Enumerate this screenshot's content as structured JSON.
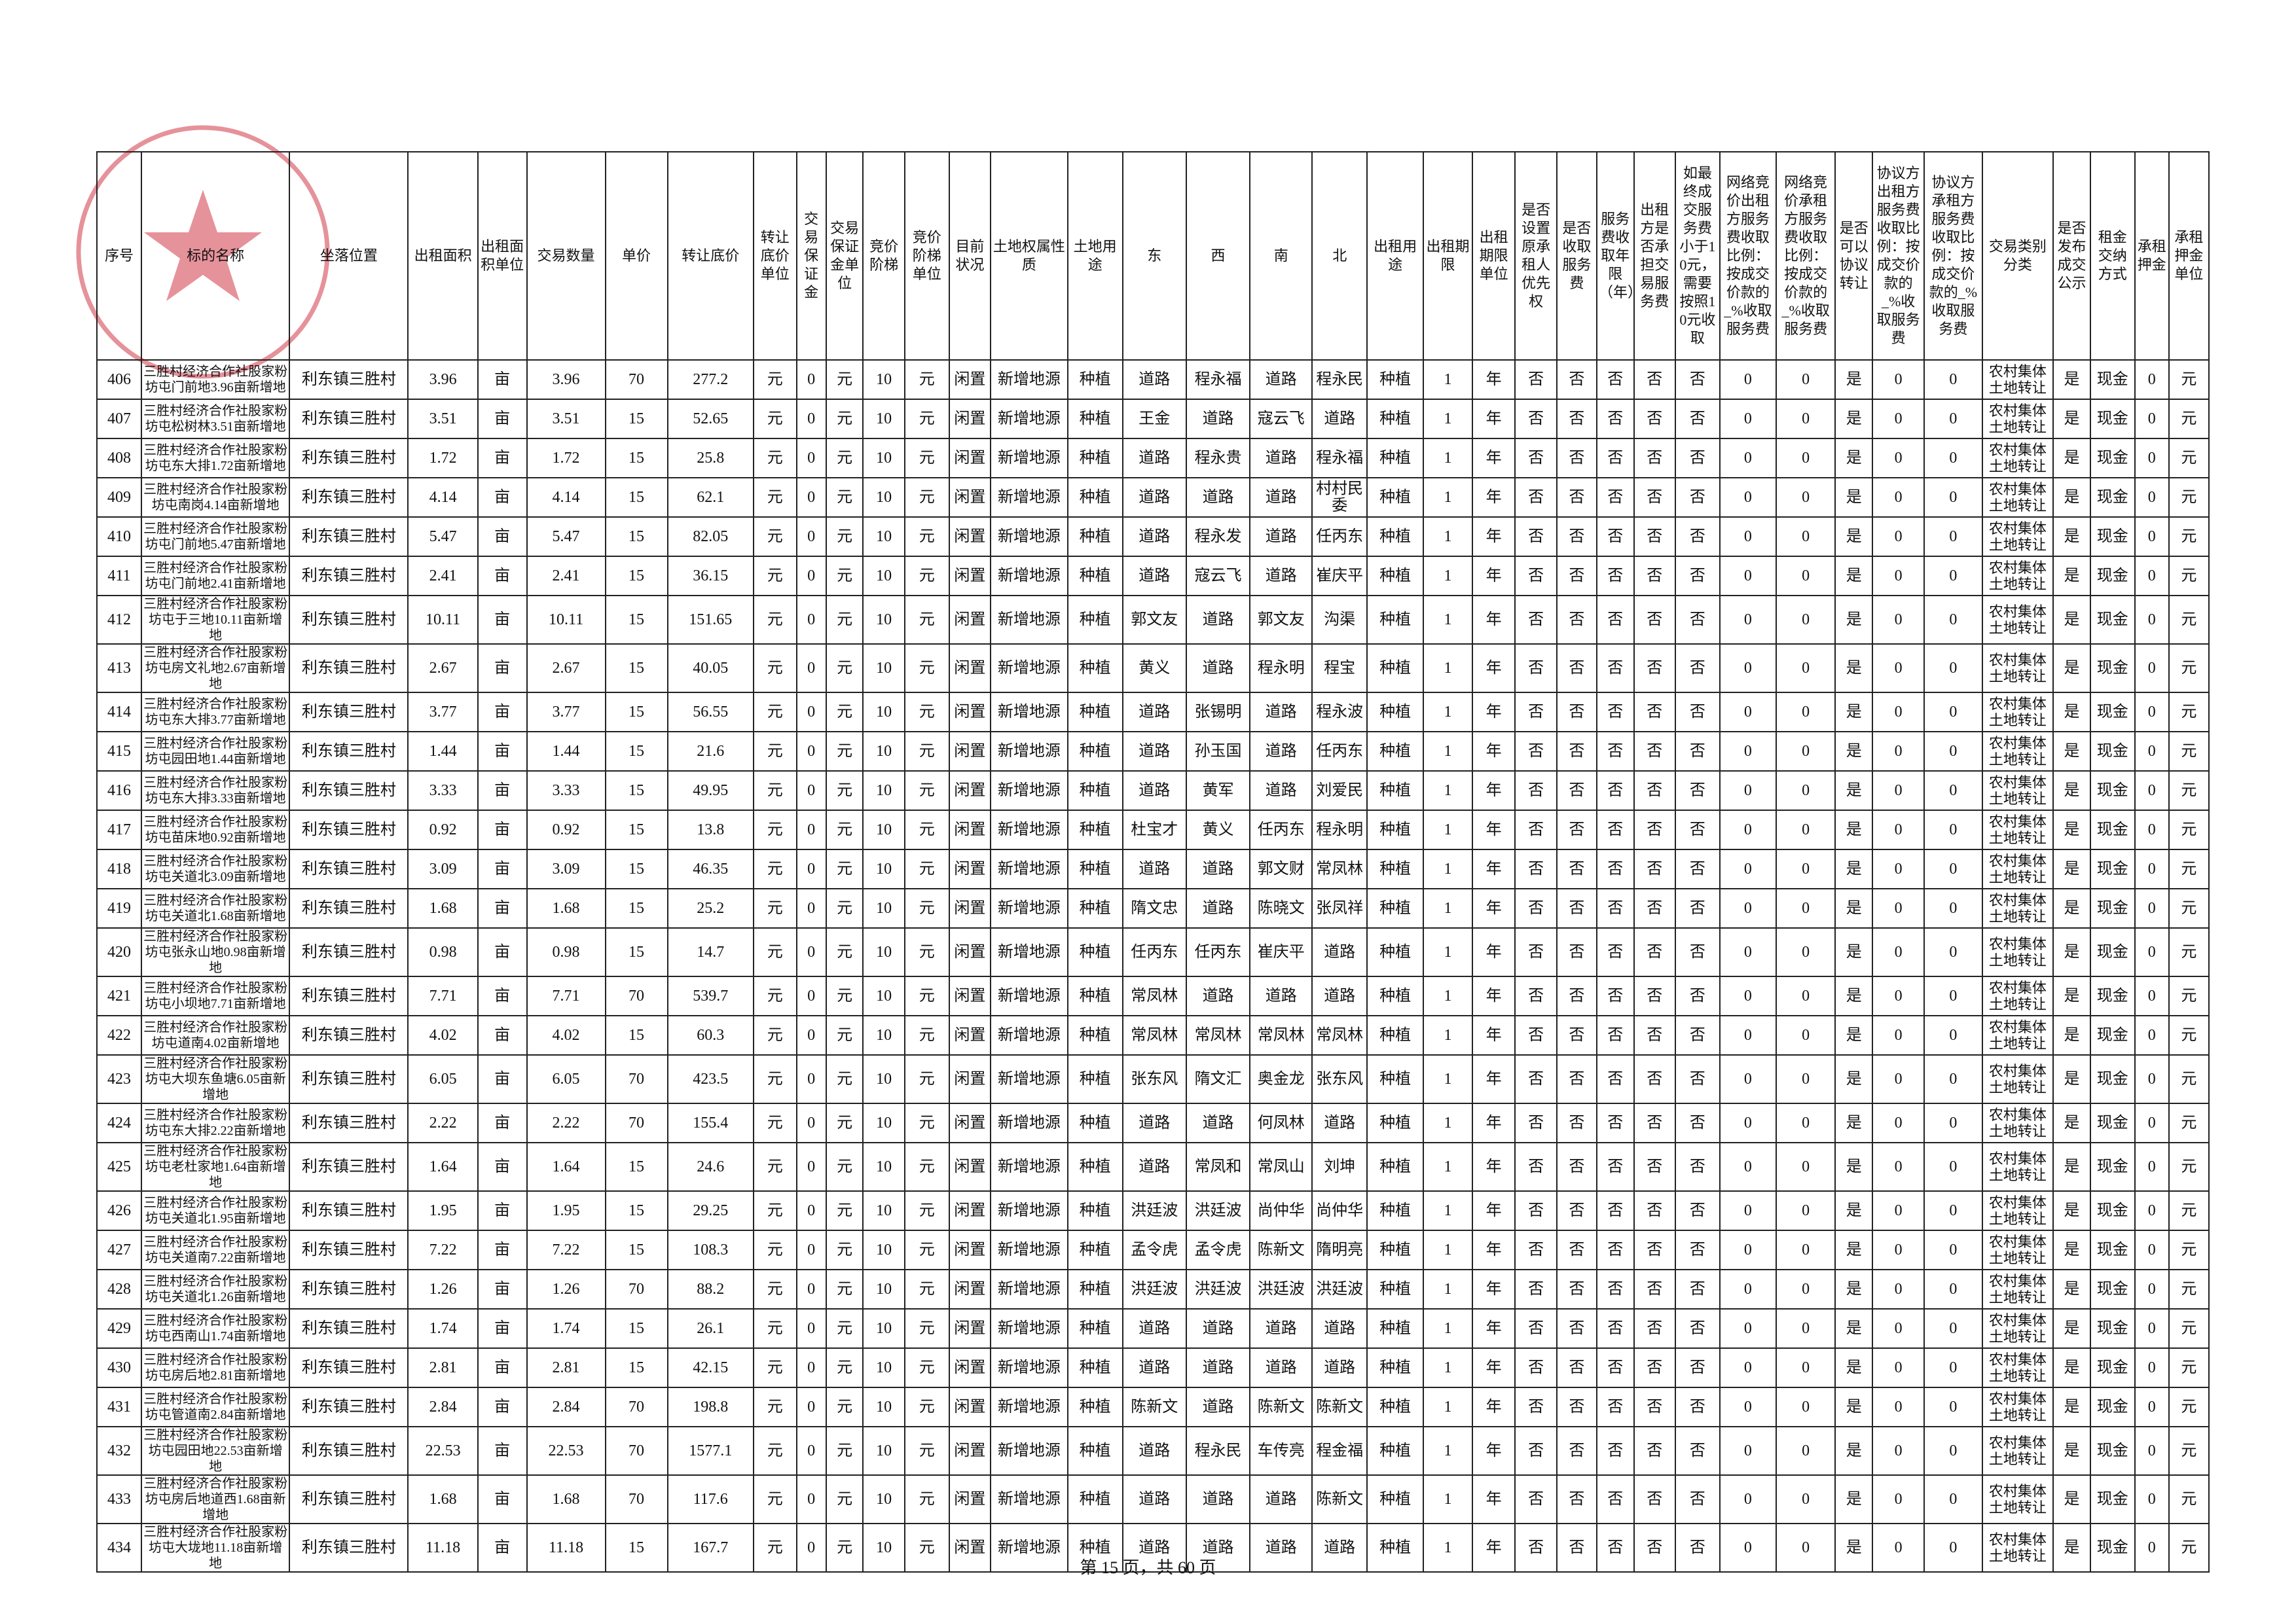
{
  "table": {
    "headers": [
      "序号",
      "标的名称",
      "坐落位置",
      "出租面积",
      "出租面积单位",
      "交易数量",
      "单价",
      "转让底价",
      "转让底价单位",
      "交易保证金",
      "交易保证金单位",
      "竞价阶梯",
      "竞价阶梯单位",
      "目前状况",
      "土地权属性质",
      "土地用途",
      "东",
      "西",
      "南",
      "北",
      "出租用途",
      "出租期限",
      "出租期限单位",
      "是否设置原承租人优先权",
      "是否收取服务费",
      "服务费收取年限（年）",
      "出租方是否承担交易服务费",
      "如最终成交服务费小于10元，需要按照10元收取",
      "网络竞价出租方服务费收取比例：按成交价款的_%收取服务费",
      "网络竞价承租方服务费收取比例：按成交价款的_%收取服务费",
      "是否可以协议转让",
      "协议方出租方服务费收取比例：按成交价款的_%收取服务费",
      "协议方承租方服务费收取比例：按成交价款的_%收取服务费",
      "交易类别分类",
      "是否发布成交公示",
      "租金交纳方式",
      "承租押金",
      "承租押金单位"
    ],
    "rows": [
      [
        "406",
        "三胜村经济合作社股家粉坊屯门前地3.96亩新增地",
        "利东镇三胜村",
        "3.96",
        "亩",
        "3.96",
        "70",
        "277.2",
        "元",
        "0",
        "元",
        "10",
        "元",
        "闲置",
        "新增地源",
        "种植",
        "道路",
        "程永福",
        "道路",
        "程永民",
        "种植",
        "1",
        "年",
        "否",
        "否",
        "否",
        "否",
        "否",
        "0",
        "0",
        "是",
        "0",
        "0",
        "农村集体土地转让",
        "是",
        "现金",
        "0",
        "元"
      ],
      [
        "407",
        "三胜村经济合作社股家粉坊屯松树林3.51亩新增地",
        "利东镇三胜村",
        "3.51",
        "亩",
        "3.51",
        "15",
        "52.65",
        "元",
        "0",
        "元",
        "10",
        "元",
        "闲置",
        "新增地源",
        "种植",
        "王金",
        "道路",
        "寇云飞",
        "道路",
        "种植",
        "1",
        "年",
        "否",
        "否",
        "否",
        "否",
        "否",
        "0",
        "0",
        "是",
        "0",
        "0",
        "农村集体土地转让",
        "是",
        "现金",
        "0",
        "元"
      ],
      [
        "408",
        "三胜村经济合作社股家粉坊屯东大排1.72亩新增地",
        "利东镇三胜村",
        "1.72",
        "亩",
        "1.72",
        "15",
        "25.8",
        "元",
        "0",
        "元",
        "10",
        "元",
        "闲置",
        "新增地源",
        "种植",
        "道路",
        "程永贵",
        "道路",
        "程永福",
        "种植",
        "1",
        "年",
        "否",
        "否",
        "否",
        "否",
        "否",
        "0",
        "0",
        "是",
        "0",
        "0",
        "农村集体土地转让",
        "是",
        "现金",
        "0",
        "元"
      ],
      [
        "409",
        "三胜村经济合作社股家粉坊屯南岗4.14亩新增地",
        "利东镇三胜村",
        "4.14",
        "亩",
        "4.14",
        "15",
        "62.1",
        "元",
        "0",
        "元",
        "10",
        "元",
        "闲置",
        "新增地源",
        "种植",
        "道路",
        "道路",
        "道路",
        "村村民委",
        "种植",
        "1",
        "年",
        "否",
        "否",
        "否",
        "否",
        "否",
        "0",
        "0",
        "是",
        "0",
        "0",
        "农村集体土地转让",
        "是",
        "现金",
        "0",
        "元"
      ],
      [
        "410",
        "三胜村经济合作社股家粉坊屯门前地5.47亩新增地",
        "利东镇三胜村",
        "5.47",
        "亩",
        "5.47",
        "15",
        "82.05",
        "元",
        "0",
        "元",
        "10",
        "元",
        "闲置",
        "新增地源",
        "种植",
        "道路",
        "程永发",
        "道路",
        "任丙东",
        "种植",
        "1",
        "年",
        "否",
        "否",
        "否",
        "否",
        "否",
        "0",
        "0",
        "是",
        "0",
        "0",
        "农村集体土地转让",
        "是",
        "现金",
        "0",
        "元"
      ],
      [
        "411",
        "三胜村经济合作社股家粉坊屯门前地2.41亩新增地",
        "利东镇三胜村",
        "2.41",
        "亩",
        "2.41",
        "15",
        "36.15",
        "元",
        "0",
        "元",
        "10",
        "元",
        "闲置",
        "新增地源",
        "种植",
        "道路",
        "寇云飞",
        "道路",
        "崔庆平",
        "种植",
        "1",
        "年",
        "否",
        "否",
        "否",
        "否",
        "否",
        "0",
        "0",
        "是",
        "0",
        "0",
        "农村集体土地转让",
        "是",
        "现金",
        "0",
        "元"
      ],
      [
        "412",
        "三胜村经济合作社股家粉坊屯于三地10.11亩新增地",
        "利东镇三胜村",
        "10.11",
        "亩",
        "10.11",
        "15",
        "151.65",
        "元",
        "0",
        "元",
        "10",
        "元",
        "闲置",
        "新增地源",
        "种植",
        "郭文友",
        "道路",
        "郭文友",
        "沟渠",
        "种植",
        "1",
        "年",
        "否",
        "否",
        "否",
        "否",
        "否",
        "0",
        "0",
        "是",
        "0",
        "0",
        "农村集体土地转让",
        "是",
        "现金",
        "0",
        "元"
      ],
      [
        "413",
        "三胜村经济合作社股家粉坊屯房文礼地2.67亩新增地",
        "利东镇三胜村",
        "2.67",
        "亩",
        "2.67",
        "15",
        "40.05",
        "元",
        "0",
        "元",
        "10",
        "元",
        "闲置",
        "新增地源",
        "种植",
        "黄义",
        "道路",
        "程永明",
        "程宝",
        "种植",
        "1",
        "年",
        "否",
        "否",
        "否",
        "否",
        "否",
        "0",
        "0",
        "是",
        "0",
        "0",
        "农村集体土地转让",
        "是",
        "现金",
        "0",
        "元"
      ],
      [
        "414",
        "三胜村经济合作社股家粉坊屯东大排3.77亩新增地",
        "利东镇三胜村",
        "3.77",
        "亩",
        "3.77",
        "15",
        "56.55",
        "元",
        "0",
        "元",
        "10",
        "元",
        "闲置",
        "新增地源",
        "种植",
        "道路",
        "张锡明",
        "道路",
        "程永波",
        "种植",
        "1",
        "年",
        "否",
        "否",
        "否",
        "否",
        "否",
        "0",
        "0",
        "是",
        "0",
        "0",
        "农村集体土地转让",
        "是",
        "现金",
        "0",
        "元"
      ],
      [
        "415",
        "三胜村经济合作社股家粉坊屯园田地1.44亩新增地",
        "利东镇三胜村",
        "1.44",
        "亩",
        "1.44",
        "15",
        "21.6",
        "元",
        "0",
        "元",
        "10",
        "元",
        "闲置",
        "新增地源",
        "种植",
        "道路",
        "孙玉国",
        "道路",
        "任丙东",
        "种植",
        "1",
        "年",
        "否",
        "否",
        "否",
        "否",
        "否",
        "0",
        "0",
        "是",
        "0",
        "0",
        "农村集体土地转让",
        "是",
        "现金",
        "0",
        "元"
      ],
      [
        "416",
        "三胜村经济合作社股家粉坊屯东大排3.33亩新增地",
        "利东镇三胜村",
        "3.33",
        "亩",
        "3.33",
        "15",
        "49.95",
        "元",
        "0",
        "元",
        "10",
        "元",
        "闲置",
        "新增地源",
        "种植",
        "道路",
        "黄军",
        "道路",
        "刘爱民",
        "种植",
        "1",
        "年",
        "否",
        "否",
        "否",
        "否",
        "否",
        "0",
        "0",
        "是",
        "0",
        "0",
        "农村集体土地转让",
        "是",
        "现金",
        "0",
        "元"
      ],
      [
        "417",
        "三胜村经济合作社股家粉坊屯苗床地0.92亩新增地",
        "利东镇三胜村",
        "0.92",
        "亩",
        "0.92",
        "15",
        "13.8",
        "元",
        "0",
        "元",
        "10",
        "元",
        "闲置",
        "新增地源",
        "种植",
        "杜宝才",
        "黄义",
        "任丙东",
        "程永明",
        "种植",
        "1",
        "年",
        "否",
        "否",
        "否",
        "否",
        "否",
        "0",
        "0",
        "是",
        "0",
        "0",
        "农村集体土地转让",
        "是",
        "现金",
        "0",
        "元"
      ],
      [
        "418",
        "三胜村经济合作社股家粉坊屯关道北3.09亩新增地",
        "利东镇三胜村",
        "3.09",
        "亩",
        "3.09",
        "15",
        "46.35",
        "元",
        "0",
        "元",
        "10",
        "元",
        "闲置",
        "新增地源",
        "种植",
        "道路",
        "道路",
        "郭文财",
        "常凤林",
        "种植",
        "1",
        "年",
        "否",
        "否",
        "否",
        "否",
        "否",
        "0",
        "0",
        "是",
        "0",
        "0",
        "农村集体土地转让",
        "是",
        "现金",
        "0",
        "元"
      ],
      [
        "419",
        "三胜村经济合作社股家粉坊屯关道北1.68亩新增地",
        "利东镇三胜村",
        "1.68",
        "亩",
        "1.68",
        "15",
        "25.2",
        "元",
        "0",
        "元",
        "10",
        "元",
        "闲置",
        "新增地源",
        "种植",
        "隋文忠",
        "道路",
        "陈晓文",
        "张凤祥",
        "种植",
        "1",
        "年",
        "否",
        "否",
        "否",
        "否",
        "否",
        "0",
        "0",
        "是",
        "0",
        "0",
        "农村集体土地转让",
        "是",
        "现金",
        "0",
        "元"
      ],
      [
        "420",
        "三胜村经济合作社股家粉坊屯张永山地0.98亩新增地",
        "利东镇三胜村",
        "0.98",
        "亩",
        "0.98",
        "15",
        "14.7",
        "元",
        "0",
        "元",
        "10",
        "元",
        "闲置",
        "新增地源",
        "种植",
        "任丙东",
        "任丙东",
        "崔庆平",
        "道路",
        "种植",
        "1",
        "年",
        "否",
        "否",
        "否",
        "否",
        "否",
        "0",
        "0",
        "是",
        "0",
        "0",
        "农村集体土地转让",
        "是",
        "现金",
        "0",
        "元"
      ],
      [
        "421",
        "三胜村经济合作社股家粉坊屯小坝地7.71亩新增地",
        "利东镇三胜村",
        "7.71",
        "亩",
        "7.71",
        "70",
        "539.7",
        "元",
        "0",
        "元",
        "10",
        "元",
        "闲置",
        "新增地源",
        "种植",
        "常凤林",
        "道路",
        "道路",
        "道路",
        "种植",
        "1",
        "年",
        "否",
        "否",
        "否",
        "否",
        "否",
        "0",
        "0",
        "是",
        "0",
        "0",
        "农村集体土地转让",
        "是",
        "现金",
        "0",
        "元"
      ],
      [
        "422",
        "三胜村经济合作社股家粉坊屯道南4.02亩新增地",
        "利东镇三胜村",
        "4.02",
        "亩",
        "4.02",
        "15",
        "60.3",
        "元",
        "0",
        "元",
        "10",
        "元",
        "闲置",
        "新增地源",
        "种植",
        "常凤林",
        "常凤林",
        "常凤林",
        "常凤林",
        "种植",
        "1",
        "年",
        "否",
        "否",
        "否",
        "否",
        "否",
        "0",
        "0",
        "是",
        "0",
        "0",
        "农村集体土地转让",
        "是",
        "现金",
        "0",
        "元"
      ],
      [
        "423",
        "三胜村经济合作社股家粉坊屯大坝东鱼塘6.05亩新增地",
        "利东镇三胜村",
        "6.05",
        "亩",
        "6.05",
        "70",
        "423.5",
        "元",
        "0",
        "元",
        "10",
        "元",
        "闲置",
        "新增地源",
        "种植",
        "张东风",
        "隋文汇",
        "奥金龙",
        "张东风",
        "种植",
        "1",
        "年",
        "否",
        "否",
        "否",
        "否",
        "否",
        "0",
        "0",
        "是",
        "0",
        "0",
        "农村集体土地转让",
        "是",
        "现金",
        "0",
        "元"
      ],
      [
        "424",
        "三胜村经济合作社股家粉坊屯东大排2.22亩新增地",
        "利东镇三胜村",
        "2.22",
        "亩",
        "2.22",
        "70",
        "155.4",
        "元",
        "0",
        "元",
        "10",
        "元",
        "闲置",
        "新增地源",
        "种植",
        "道路",
        "道路",
        "何凤林",
        "道路",
        "种植",
        "1",
        "年",
        "否",
        "否",
        "否",
        "否",
        "否",
        "0",
        "0",
        "是",
        "0",
        "0",
        "农村集体土地转让",
        "是",
        "现金",
        "0",
        "元"
      ],
      [
        "425",
        "三胜村经济合作社股家粉坊屯老杜家地1.64亩新增地",
        "利东镇三胜村",
        "1.64",
        "亩",
        "1.64",
        "15",
        "24.6",
        "元",
        "0",
        "元",
        "10",
        "元",
        "闲置",
        "新增地源",
        "种植",
        "道路",
        "常凤和",
        "常凤山",
        "刘坤",
        "种植",
        "1",
        "年",
        "否",
        "否",
        "否",
        "否",
        "否",
        "0",
        "0",
        "是",
        "0",
        "0",
        "农村集体土地转让",
        "是",
        "现金",
        "0",
        "元"
      ],
      [
        "426",
        "三胜村经济合作社股家粉坊屯关道北1.95亩新增地",
        "利东镇三胜村",
        "1.95",
        "亩",
        "1.95",
        "15",
        "29.25",
        "元",
        "0",
        "元",
        "10",
        "元",
        "闲置",
        "新增地源",
        "种植",
        "洪廷波",
        "洪廷波",
        "尚仲华",
        "尚仲华",
        "种植",
        "1",
        "年",
        "否",
        "否",
        "否",
        "否",
        "否",
        "0",
        "0",
        "是",
        "0",
        "0",
        "农村集体土地转让",
        "是",
        "现金",
        "0",
        "元"
      ],
      [
        "427",
        "三胜村经济合作社股家粉坊屯关道南7.22亩新增地",
        "利东镇三胜村",
        "7.22",
        "亩",
        "7.22",
        "15",
        "108.3",
        "元",
        "0",
        "元",
        "10",
        "元",
        "闲置",
        "新增地源",
        "种植",
        "孟令虎",
        "孟令虎",
        "陈新文",
        "隋明亮",
        "种植",
        "1",
        "年",
        "否",
        "否",
        "否",
        "否",
        "否",
        "0",
        "0",
        "是",
        "0",
        "0",
        "农村集体土地转让",
        "是",
        "现金",
        "0",
        "元"
      ],
      [
        "428",
        "三胜村经济合作社股家粉坊屯关道北1.26亩新增地",
        "利东镇三胜村",
        "1.26",
        "亩",
        "1.26",
        "70",
        "88.2",
        "元",
        "0",
        "元",
        "10",
        "元",
        "闲置",
        "新增地源",
        "种植",
        "洪廷波",
        "洪廷波",
        "洪廷波",
        "洪廷波",
        "种植",
        "1",
        "年",
        "否",
        "否",
        "否",
        "否",
        "否",
        "0",
        "0",
        "是",
        "0",
        "0",
        "农村集体土地转让",
        "是",
        "现金",
        "0",
        "元"
      ],
      [
        "429",
        "三胜村经济合作社股家粉坊屯西南山1.74亩新增地",
        "利东镇三胜村",
        "1.74",
        "亩",
        "1.74",
        "15",
        "26.1",
        "元",
        "0",
        "元",
        "10",
        "元",
        "闲置",
        "新增地源",
        "种植",
        "道路",
        "道路",
        "道路",
        "道路",
        "种植",
        "1",
        "年",
        "否",
        "否",
        "否",
        "否",
        "否",
        "0",
        "0",
        "是",
        "0",
        "0",
        "农村集体土地转让",
        "是",
        "现金",
        "0",
        "元"
      ],
      [
        "430",
        "三胜村经济合作社股家粉坊屯房后地2.81亩新增地",
        "利东镇三胜村",
        "2.81",
        "亩",
        "2.81",
        "15",
        "42.15",
        "元",
        "0",
        "元",
        "10",
        "元",
        "闲置",
        "新增地源",
        "种植",
        "道路",
        "道路",
        "道路",
        "道路",
        "种植",
        "1",
        "年",
        "否",
        "否",
        "否",
        "否",
        "否",
        "0",
        "0",
        "是",
        "0",
        "0",
        "农村集体土地转让",
        "是",
        "现金",
        "0",
        "元"
      ],
      [
        "431",
        "三胜村经济合作社股家粉坊屯管道南2.84亩新增地",
        "利东镇三胜村",
        "2.84",
        "亩",
        "2.84",
        "70",
        "198.8",
        "元",
        "0",
        "元",
        "10",
        "元",
        "闲置",
        "新增地源",
        "种植",
        "陈新文",
        "道路",
        "陈新文",
        "陈新文",
        "种植",
        "1",
        "年",
        "否",
        "否",
        "否",
        "否",
        "否",
        "0",
        "0",
        "是",
        "0",
        "0",
        "农村集体土地转让",
        "是",
        "现金",
        "0",
        "元"
      ],
      [
        "432",
        "三胜村经济合作社股家粉坊屯园田地22.53亩新增地",
        "利东镇三胜村",
        "22.53",
        "亩",
        "22.53",
        "70",
        "1577.1",
        "元",
        "0",
        "元",
        "10",
        "元",
        "闲置",
        "新增地源",
        "种植",
        "道路",
        "程永民",
        "车传亮",
        "程金福",
        "种植",
        "1",
        "年",
        "否",
        "否",
        "否",
        "否",
        "否",
        "0",
        "0",
        "是",
        "0",
        "0",
        "农村集体土地转让",
        "是",
        "现金",
        "0",
        "元"
      ],
      [
        "433",
        "三胜村经济合作社股家粉坊屯房后地道西1.68亩新增地",
        "利东镇三胜村",
        "1.68",
        "亩",
        "1.68",
        "70",
        "117.6",
        "元",
        "0",
        "元",
        "10",
        "元",
        "闲置",
        "新增地源",
        "种植",
        "道路",
        "道路",
        "道路",
        "陈新文",
        "种植",
        "1",
        "年",
        "否",
        "否",
        "否",
        "否",
        "否",
        "0",
        "0",
        "是",
        "0",
        "0",
        "农村集体土地转让",
        "是",
        "现金",
        "0",
        "元"
      ],
      [
        "434",
        "三胜村经济合作社股家粉坊屯大垅地11.18亩新增地",
        "利东镇三胜村",
        "11.18",
        "亩",
        "11.18",
        "15",
        "167.7",
        "元",
        "0",
        "元",
        "10",
        "元",
        "闲置",
        "新增地源",
        "种植",
        "道路",
        "道路",
        "道路",
        "道路",
        "种植",
        "1",
        "年",
        "否",
        "否",
        "否",
        "否",
        "否",
        "0",
        "0",
        "是",
        "0",
        "0",
        "农村集体土地转让",
        "是",
        "现金",
        "0",
        "元"
      ]
    ]
  },
  "footer": {
    "page": "第 15 页，共 60 页"
  }
}
